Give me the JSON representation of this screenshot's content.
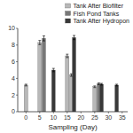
{
  "chart_data": {
    "type": "bar",
    "xlabel": "Sampling (Day)",
    "series": [
      {
        "name": "Tank After Biofilter",
        "color": "#b8b8b8",
        "x": [
          0,
          5,
          15,
          16.5,
          25
        ],
        "values": [
          3.2,
          8.3,
          6.7,
          4.4,
          3.0
        ],
        "errors": [
          0.1,
          0.25,
          0.2,
          0.15,
          0.1
        ]
      },
      {
        "name": "Fish Pond Tanks",
        "color": "#787878",
        "x": [
          6.5,
          26.5
        ],
        "values": [
          8.8,
          3.35
        ],
        "errors": [
          0.3,
          0.1
        ]
      },
      {
        "name": "Tank After Hydropon",
        "color": "#383838",
        "x": [
          10,
          17.5,
          27.5,
          33
        ],
        "values": [
          5.0,
          8.9,
          3.3,
          3.2
        ],
        "errors": [
          0.2,
          0.25,
          0.1,
          0.1
        ]
      }
    ],
    "xlim": [
      -3,
      37
    ],
    "xticks": [
      0,
      5,
      10,
      15,
      20,
      25,
      30,
      35
    ],
    "ylim": [
      0,
      10
    ],
    "yticks": [
      0,
      2,
      4,
      6,
      8,
      10
    ],
    "grid": false,
    "legend": "upper right"
  }
}
